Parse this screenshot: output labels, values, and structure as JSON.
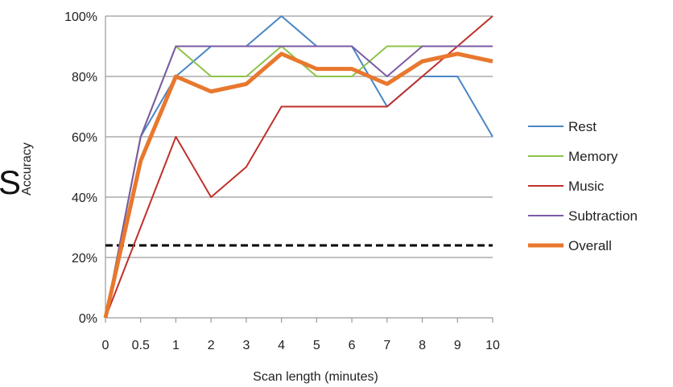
{
  "stray_text": "S",
  "chart_data": {
    "type": "line",
    "title": "",
    "xlabel": "Scan length (minutes)",
    "ylabel": "Accuracy",
    "categories": [
      "0",
      "0.5",
      "1",
      "2",
      "3",
      "4",
      "5",
      "6",
      "7",
      "8",
      "9",
      "10"
    ],
    "y_ticks": [
      "0%",
      "20%",
      "40%",
      "60%",
      "80%",
      "100%"
    ],
    "ylim": [
      0,
      100
    ],
    "grid": "horizontal",
    "legend_position": "right",
    "series": [
      {
        "name": "Rest",
        "color": "#4a86c5",
        "values": [
          0,
          60,
          80,
          90,
          90,
          100,
          90,
          90,
          70,
          80,
          80,
          60
        ]
      },
      {
        "name": "Memory",
        "color": "#8dc34a",
        "values": [
          0,
          60,
          90,
          80,
          80,
          90,
          80,
          80,
          90,
          90,
          90,
          90
        ]
      },
      {
        "name": "Music",
        "color": "#c0302b",
        "values": [
          0,
          30,
          60,
          40,
          50,
          70,
          70,
          70,
          70,
          80,
          90,
          100
        ]
      },
      {
        "name": "Subtraction",
        "color": "#7b5aa6",
        "values": [
          0,
          60,
          90,
          90,
          90,
          90,
          90,
          90,
          80,
          90,
          90,
          90
        ]
      },
      {
        "name": "Overall",
        "color": "#e8782e",
        "values": [
          0,
          52,
          80,
          75,
          77.5,
          87.5,
          82.5,
          82.5,
          77.5,
          85,
          87.5,
          85
        ]
      }
    ],
    "reference_line": {
      "value": 24,
      "style": "dashed",
      "color": "#000000"
    }
  }
}
